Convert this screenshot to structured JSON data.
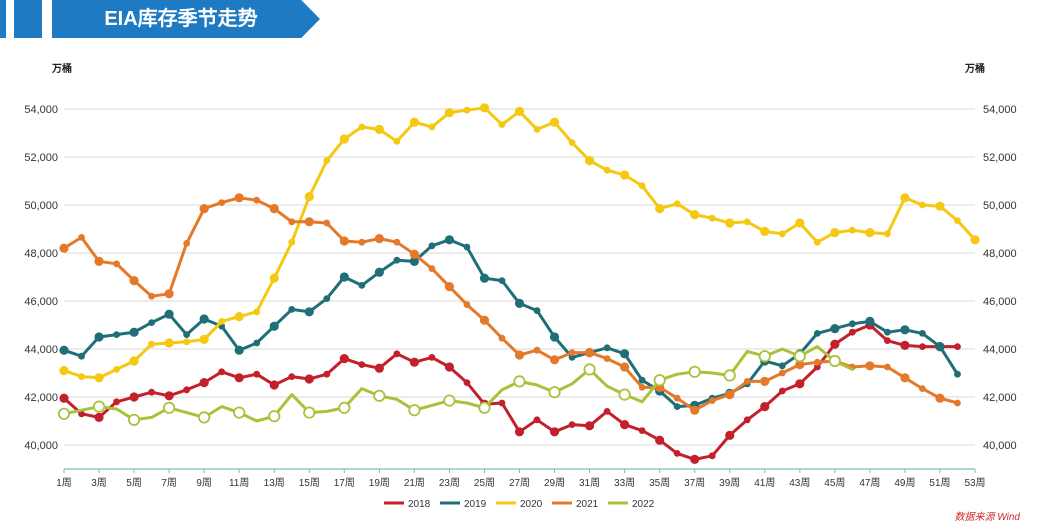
{
  "banner": {
    "title": "EIA库存季节走势"
  },
  "units": {
    "left": "万桶",
    "right": "万桶"
  },
  "source": "数据来源 Wind",
  "chart_data": {
    "type": "line",
    "title": "EIA库存季节走势",
    "ylabel_left": "万桶",
    "ylabel_right": "万桶",
    "ylim": [
      39000,
      55000
    ],
    "yticks": [
      40000,
      42000,
      44000,
      46000,
      48000,
      50000,
      52000,
      54000
    ],
    "ytick_labels": [
      "40,000",
      "42,000",
      "44,000",
      "46,000",
      "48,000",
      "50,000",
      "52,000",
      "54,000"
    ],
    "xlim": [
      1,
      53
    ],
    "x_tick_labels": [
      "1周",
      "3周",
      "5周",
      "7周",
      "9周",
      "11周",
      "13周",
      "15周",
      "17周",
      "19周",
      "21周",
      "23周",
      "25周",
      "27周",
      "29周",
      "31周",
      "33周",
      "35周",
      "37周",
      "39周",
      "41周",
      "43周",
      "45周",
      "47周",
      "49周",
      "51周",
      "53周"
    ],
    "legend_position": "bottom",
    "series": [
      {
        "name": "2018",
        "color": "#c3202c",
        "marker_style": "filled",
        "values": [
          41950,
          41300,
          41150,
          41800,
          42000,
          42200,
          42050,
          42300,
          42600,
          43050,
          42800,
          42950,
          42500,
          42850,
          42750,
          42950,
          43600,
          43350,
          43200,
          43800,
          43450,
          43650,
          43250,
          42600,
          41700,
          41750,
          40550,
          41050,
          40550,
          40850,
          40800,
          41400,
          40850,
          40600,
          40200,
          39650,
          39400,
          39550,
          40400,
          41050,
          41600,
          42250,
          42550,
          43250,
          44200,
          44700,
          45000,
          44350,
          44150,
          44100,
          44100,
          44100
        ]
      },
      {
        "name": "2019",
        "color": "#1f6e78",
        "marker_style": "filled",
        "values": [
          43950,
          43700,
          44500,
          44600,
          44700,
          45100,
          45450,
          44600,
          45250,
          44950,
          43950,
          44250,
          44950,
          45650,
          45550,
          46100,
          47000,
          46650,
          47200,
          47700,
          47650,
          48300,
          48550,
          48250,
          46950,
          46850,
          45900,
          45600,
          44500,
          43650,
          43850,
          44050,
          43800,
          42700,
          42250,
          41600,
          41650,
          41950,
          42150,
          42550,
          43500,
          43300,
          43800,
          44650,
          44850,
          45050,
          45150,
          44700,
          44800,
          44650,
          44100,
          42950
        ]
      },
      {
        "name": "2020",
        "color": "#f5c811",
        "marker_style": "filled",
        "values": [
          43100,
          42850,
          42800,
          43150,
          43500,
          44200,
          44250,
          44300,
          44400,
          45150,
          45350,
          45550,
          46950,
          48450,
          50350,
          51850,
          52750,
          53250,
          53150,
          52650,
          53450,
          53250,
          53850,
          53950,
          54050,
          53350,
          53900,
          53150,
          53450,
          52600,
          51850,
          51450,
          51250,
          50800,
          49850,
          50050,
          49600,
          49450,
          49250,
          49300,
          48900,
          48800,
          49250,
          48450,
          48850,
          48950,
          48850,
          48800,
          50300,
          50000,
          49950,
          49350,
          48550
        ]
      },
      {
        "name": "2021",
        "color": "#e4792a",
        "marker_style": "filled",
        "values": [
          48200,
          48650,
          47650,
          47550,
          46850,
          46200,
          46300,
          48400,
          49850,
          50100,
          50300,
          50200,
          49850,
          49300,
          49300,
          49250,
          48500,
          48450,
          48600,
          48450,
          47950,
          47350,
          46600,
          45850,
          45200,
          44450,
          43750,
          43950,
          43550,
          43850,
          43850,
          43600,
          43250,
          42400,
          42400,
          41950,
          41450,
          41850,
          42100,
          42650,
          42650,
          43000,
          43350,
          43450,
          43500,
          43250,
          43300,
          43250,
          42800,
          42350,
          41950,
          41750
        ]
      },
      {
        "name": "2022",
        "color": "#a8c23a",
        "marker_style": "hollow",
        "values": [
          41300,
          41450,
          41600,
          41500,
          41050,
          41150,
          41550,
          41350,
          41150,
          41600,
          41350,
          41000,
          41200,
          42100,
          41350,
          41400,
          41550,
          42350,
          42050,
          41900,
          41450,
          41650,
          41850,
          41750,
          41550,
          42300,
          42650,
          42500,
          42200,
          42550,
          43150,
          42450,
          42100,
          41800,
          42700,
          42950,
          43050,
          43000,
          42900,
          43900,
          43700,
          44000,
          43700,
          44100,
          43500,
          43150
        ]
      }
    ]
  }
}
